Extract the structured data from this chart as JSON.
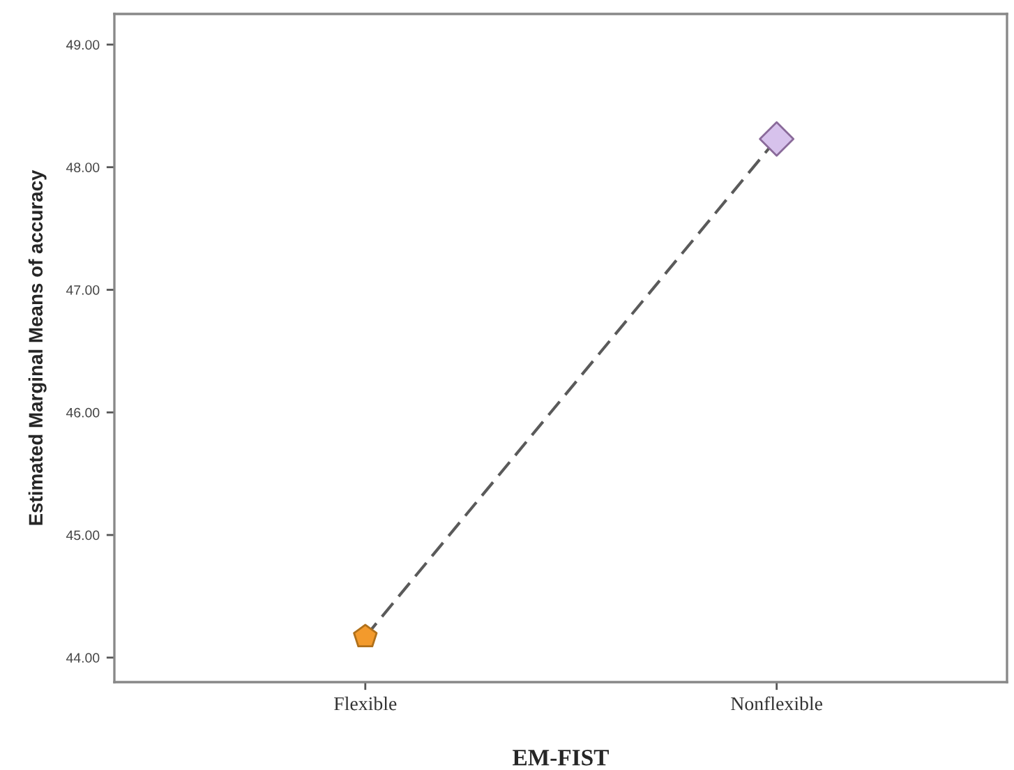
{
  "chart_data": {
    "type": "line",
    "xlabel": "EM-FIST",
    "ylabel": "Estimated Marginal Means of accuracy",
    "categories": [
      "Flexible",
      "Nonflexible"
    ],
    "series": [
      {
        "color": "#5a5a5a",
        "values": [
          44.17,
          48.23
        ],
        "line_style": "dashed",
        "marker": "none"
      },
      {
        "type": "scatter",
        "color": "#f39a2c",
        "values": [
          44.17,
          null
        ]
      },
      {
        "type": "scatter",
        "color": "#d7c2ec",
        "values": [
          null,
          48.23
        ],
        "marker": "diamond"
      }
    ],
    "ylim": [
      43.8,
      49.25
    ],
    "yticks": [
      {
        "value": 44,
        "label": "44.00"
      },
      {
        "value": 45,
        "label": "45.00"
      },
      {
        "value": 46,
        "label": "46.00"
      },
      {
        "value": 47,
        "label": "47.00"
      },
      {
        "value": 48,
        "label": "48.00"
      },
      {
        "value": 49,
        "label": "49.00"
      }
    ],
    "grid": false,
    "legend": false
  }
}
